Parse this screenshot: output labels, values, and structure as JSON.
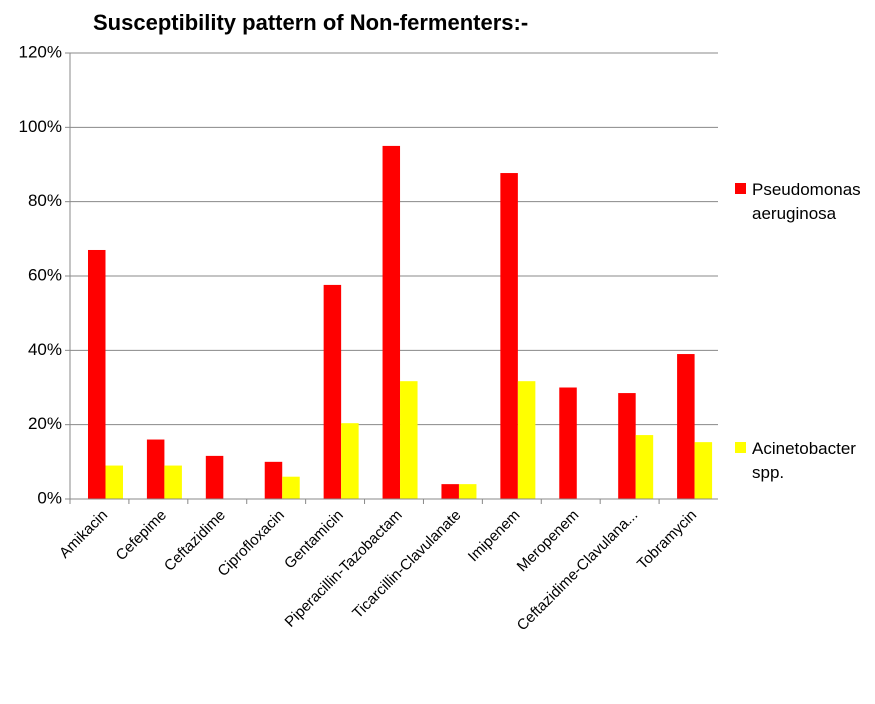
{
  "chart_data": {
    "type": "bar",
    "title": "Susceptibility pattern of Non-fermenters:-",
    "categories": [
      "Amikacin",
      "Cefepime",
      "Ceftazidime",
      "Ciprofloxacin",
      "Gentamicin",
      "Piperacillin-Tazobactam",
      "Ticarcillin-Clavulanate",
      "Imipenem",
      "Meropenem",
      "Ceftazidime-Clavulana...",
      "Tobramycin"
    ],
    "series": [
      {
        "name": "Pseudomonas aeruginosa",
        "color": "#ff0000",
        "values": [
          67,
          16,
          11.6,
          10,
          57.6,
          95,
          4,
          87.7,
          30,
          28.5,
          39
        ]
      },
      {
        "name": "Acinetobacter spp.",
        "color": "#ffff00",
        "values": [
          9,
          9,
          0,
          6,
          20.4,
          31.7,
          4,
          31.7,
          0,
          17.2,
          15.3
        ]
      }
    ],
    "ylim": [
      0,
      120
    ],
    "yticks": [
      {
        "value": 0,
        "label": "0%"
      },
      {
        "value": 20,
        "label": "20%"
      },
      {
        "value": 40,
        "label": "40%"
      },
      {
        "value": 60,
        "label": "60%"
      },
      {
        "value": 80,
        "label": "80%"
      },
      {
        "value": 100,
        "label": "100%"
      },
      {
        "value": 120,
        "label": "120%"
      }
    ],
    "grid": true,
    "legend": "right"
  }
}
